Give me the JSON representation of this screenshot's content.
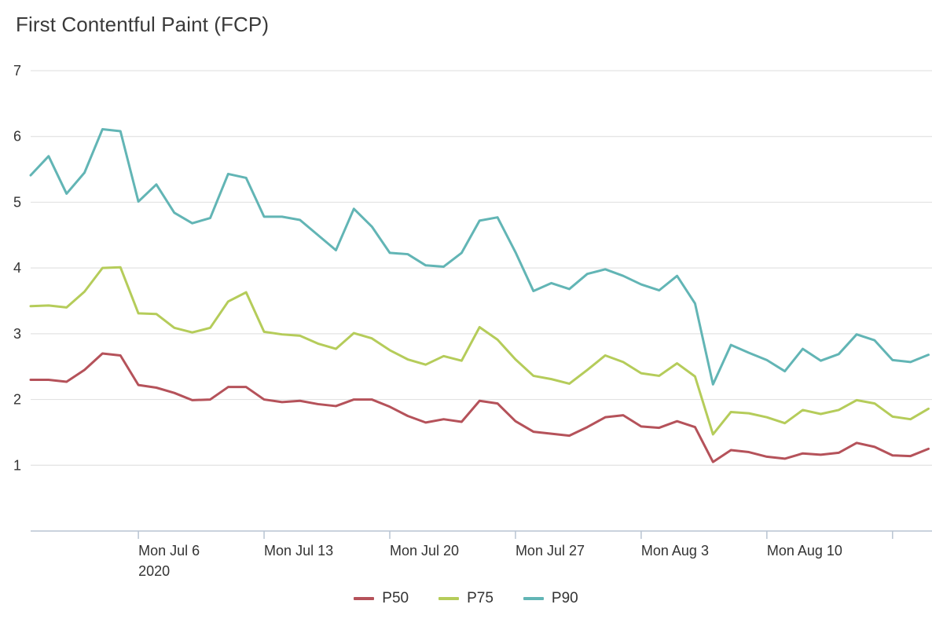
{
  "title": "First Contentful Paint (FCP)",
  "colors": {
    "p50": "#b5525a",
    "p75": "#b5cc5a",
    "p90": "#62b5b5",
    "grid": "#e3e3e3",
    "axis": "#b8c4d2"
  },
  "chart_data": {
    "type": "line",
    "title": "First Contentful Paint (FCP)",
    "xlabel": "",
    "ylabel": "",
    "ylim": [
      0,
      7
    ],
    "grid": true,
    "legend_position": "bottom-center",
    "yticks": [
      "1",
      "2",
      "3",
      "4",
      "5",
      "6",
      "7"
    ],
    "xticks": [
      {
        "label": "Mon Jul 6",
        "sub": "2020",
        "day_index": 6
      },
      {
        "label": "Mon Jul 13",
        "sub": "",
        "day_index": 13
      },
      {
        "label": "Mon Jul 20",
        "sub": "",
        "day_index": 20
      },
      {
        "label": "Mon Jul 27",
        "sub": "",
        "day_index": 27
      },
      {
        "label": "Mon Aug 3",
        "sub": "",
        "day_index": 34
      },
      {
        "label": "Mon Aug 10",
        "sub": "",
        "day_index": 41
      },
      {
        "label": "",
        "sub": "",
        "day_index": 48
      }
    ],
    "series": [
      {
        "name": "P50",
        "color_key": "p50",
        "values": [
          2.3,
          2.3,
          2.27,
          2.45,
          2.7,
          2.67,
          2.22,
          2.18,
          2.1,
          1.99,
          2.0,
          2.19,
          2.19,
          2.0,
          1.96,
          1.98,
          1.93,
          1.9,
          2.0,
          2.0,
          1.89,
          1.75,
          1.65,
          1.7,
          1.66,
          1.98,
          1.94,
          1.67,
          1.51,
          1.48,
          1.45,
          1.58,
          1.73,
          1.76,
          1.59,
          1.57,
          1.67,
          1.58,
          1.05,
          1.23,
          1.2,
          1.13,
          1.1,
          1.18,
          1.16,
          1.19,
          1.34,
          1.28,
          1.15,
          1.14,
          1.25
        ]
      },
      {
        "name": "P75",
        "color_key": "p75",
        "values": [
          3.42,
          3.43,
          3.4,
          3.64,
          4.0,
          4.01,
          3.31,
          3.3,
          3.09,
          3.02,
          3.09,
          3.49,
          3.63,
          3.03,
          2.99,
          2.97,
          2.85,
          2.77,
          3.01,
          2.93,
          2.75,
          2.61,
          2.53,
          2.66,
          2.59,
          3.1,
          2.91,
          2.61,
          2.36,
          2.31,
          2.24,
          2.45,
          2.67,
          2.57,
          2.4,
          2.36,
          2.55,
          2.35,
          1.47,
          1.81,
          1.79,
          1.73,
          1.64,
          1.84,
          1.78,
          1.84,
          1.99,
          1.94,
          1.74,
          1.7,
          1.86
        ]
      },
      {
        "name": "P90",
        "color_key": "p90",
        "values": [
          5.41,
          5.7,
          5.13,
          5.45,
          6.11,
          6.08,
          5.01,
          5.27,
          4.84,
          4.68,
          4.76,
          5.43,
          5.37,
          4.78,
          4.78,
          4.73,
          4.5,
          4.27,
          4.9,
          4.63,
          4.23,
          4.21,
          4.04,
          4.02,
          4.23,
          4.72,
          4.77,
          4.24,
          3.65,
          3.77,
          3.68,
          3.91,
          3.98,
          3.88,
          3.75,
          3.66,
          3.88,
          3.46,
          2.23,
          2.83,
          2.71,
          2.6,
          2.43,
          2.77,
          2.59,
          2.69,
          2.99,
          2.9,
          2.6,
          2.57,
          2.68
        ]
      }
    ]
  }
}
